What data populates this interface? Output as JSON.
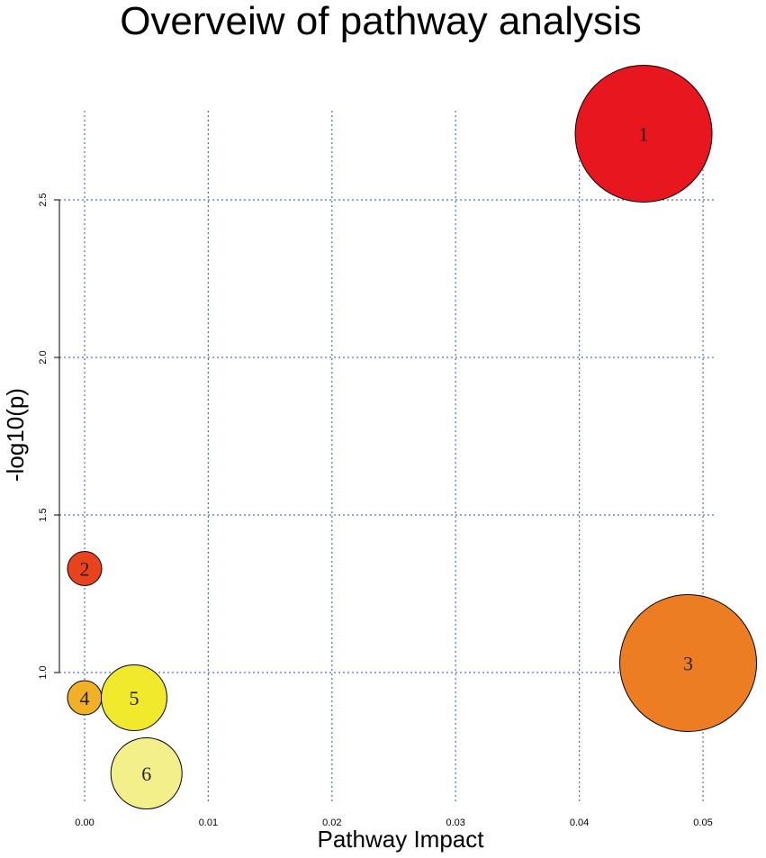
{
  "chart_data": {
    "type": "scatter",
    "title": "Overveiw of pathway analysis",
    "xlabel": "Pathway Impact",
    "ylabel": "-log10(p)",
    "xlim": [
      0,
      0.05
    ],
    "ylim": [
      0.6,
      2.8
    ],
    "x_ticks": [
      0.0,
      0.01,
      0.02,
      0.03,
      0.04,
      0.05
    ],
    "x_tick_labels": [
      "0.00",
      "0.01",
      "0.02",
      "0.03",
      "0.04",
      "0.05"
    ],
    "y_ticks": [
      1.0,
      1.5,
      2.0,
      2.5
    ],
    "y_tick_labels": [
      "1.0",
      "1.5",
      "2.0",
      "2.5"
    ],
    "grid": true,
    "points": [
      {
        "label": "1",
        "x": 0.0452,
        "y": 2.71,
        "size": 1.0,
        "color": "#e8161e"
      },
      {
        "label": "2",
        "x": 0.0,
        "y": 1.33,
        "size": 0.25,
        "color": "#e8431c"
      },
      {
        "label": "3",
        "x": 0.0488,
        "y": 1.03,
        "size": 1.0,
        "color": "#ed7d22"
      },
      {
        "label": "4",
        "x": 0.0,
        "y": 0.92,
        "size": 0.25,
        "color": "#f2b025"
      },
      {
        "label": "5",
        "x": 0.004,
        "y": 0.92,
        "size": 0.48,
        "color": "#f0e92c"
      },
      {
        "label": "6",
        "x": 0.005,
        "y": 0.68,
        "size": 0.52,
        "color": "#f3ef8a"
      }
    ]
  }
}
